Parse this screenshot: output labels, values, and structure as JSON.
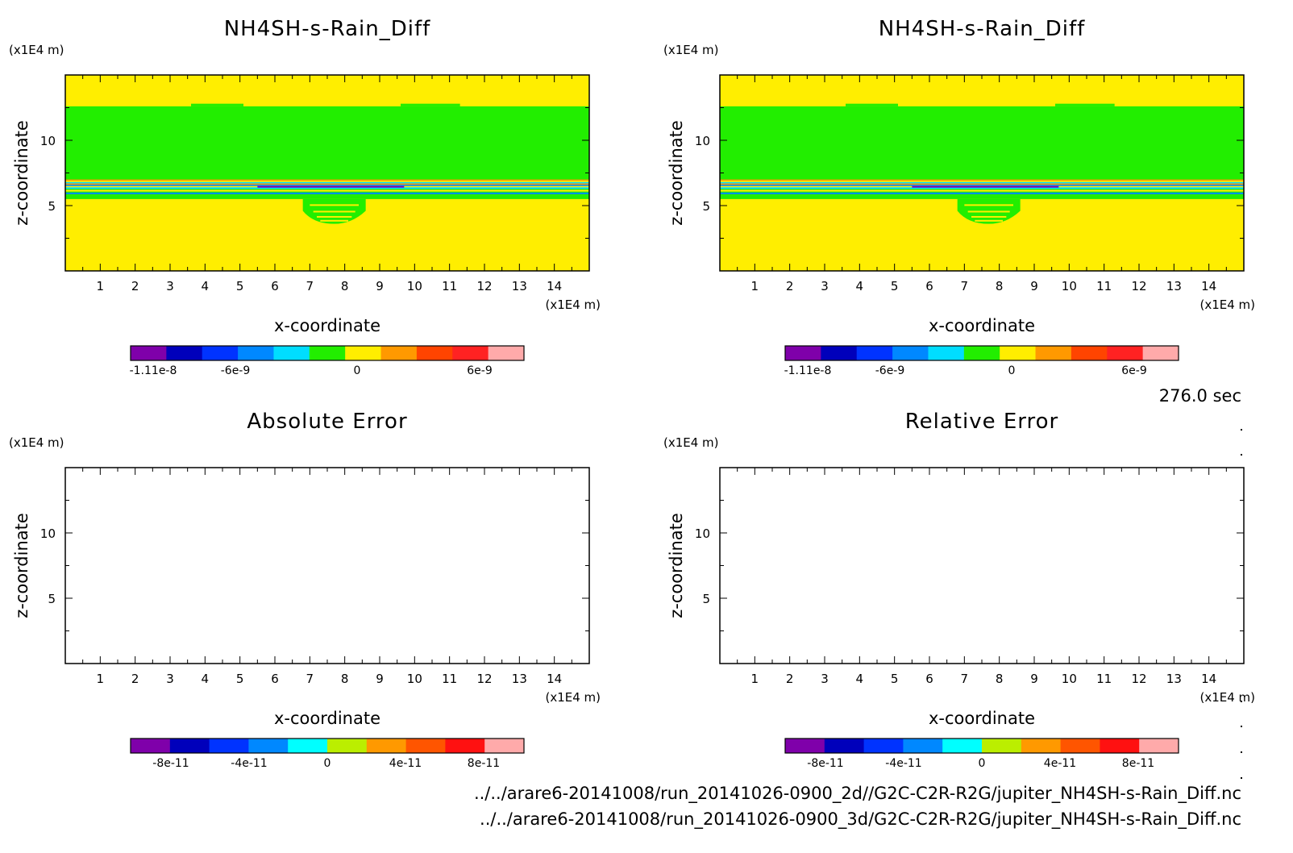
{
  "time_label": "276.0 sec",
  "files": [
    "../../arare6-20141008/run_20141026-0900_2d//G2C-C2R-R2G/jupiter_NH4SH-s-Rain_Diff.nc",
    "../../arare6-20141008/run_20141026-0900_3d/G2C-C2R-R2G/jupiter_NH4SH-s-Rain_Diff.nc"
  ],
  "chart_data": [
    {
      "type": "heatmap",
      "title": "NH4SH-s-Rain_Diff",
      "xlabel": "x-coordinate",
      "ylabel": "z-coordinate",
      "x_unit": "(x1E4 m)",
      "y_unit": "(x1E4 m)",
      "xlim": [
        0,
        15
      ],
      "ylim": [
        0,
        15
      ],
      "x_ticks": [
        "1",
        "2",
        "3",
        "4",
        "5",
        "6",
        "7",
        "8",
        "9",
        "10",
        "11",
        "12",
        "13",
        "14"
      ],
      "y_ticks": [
        "5",
        "10"
      ],
      "field": {
        "background_level": "yellow",
        "bands": [
          {
            "z_from": 5.5,
            "z_to": 12.6,
            "color": "#22ee00"
          },
          {
            "z_from": 6.4,
            "z_to": 7.0,
            "color": "multi"
          },
          {
            "z_from": 3.6,
            "z_to": 5.5,
            "x_from": 6.8,
            "x_to": 8.6,
            "color": "#22ee00"
          }
        ]
      },
      "colorbar": {
        "colors": [
          "#7f00aa",
          "#0000bb",
          "#0033ff",
          "#0088ff",
          "#00ddff",
          "#22ee00",
          "#ffee00",
          "#ff9900",
          "#ff4400",
          "#ff2222",
          "#ffaaaa"
        ],
        "labels": [
          "-1.11e-8",
          "-6e-9",
          "0",
          "6e-9"
        ]
      }
    },
    {
      "type": "heatmap",
      "title": "NH4SH-s-Rain_Diff",
      "xlabel": "x-coordinate",
      "ylabel": "z-coordinate",
      "x_unit": "(x1E4 m)",
      "y_unit": "(x1E4 m)",
      "xlim": [
        0,
        15
      ],
      "ylim": [
        0,
        15
      ],
      "x_ticks": [
        "1",
        "2",
        "3",
        "4",
        "5",
        "6",
        "7",
        "8",
        "9",
        "10",
        "11",
        "12",
        "13",
        "14"
      ],
      "y_ticks": [
        "5",
        "10"
      ],
      "field": {
        "background_level": "yellow",
        "bands": [
          {
            "z_from": 5.5,
            "z_to": 12.6,
            "color": "#22ee00"
          },
          {
            "z_from": 6.4,
            "z_to": 7.0,
            "color": "multi"
          },
          {
            "z_from": 3.6,
            "z_to": 5.5,
            "x_from": 6.8,
            "x_to": 8.6,
            "color": "#22ee00"
          }
        ]
      },
      "colorbar": {
        "colors": [
          "#7f00aa",
          "#0000bb",
          "#0033ff",
          "#0088ff",
          "#00ddff",
          "#22ee00",
          "#ffee00",
          "#ff9900",
          "#ff4400",
          "#ff2222",
          "#ffaaaa"
        ],
        "labels": [
          "-1.11e-8",
          "-6e-9",
          "0",
          "6e-9"
        ]
      }
    },
    {
      "type": "heatmap",
      "title": "Absolute Error",
      "xlabel": "x-coordinate",
      "ylabel": "z-coordinate",
      "x_unit": "(x1E4 m)",
      "y_unit": "(x1E4 m)",
      "xlim": [
        0,
        15
      ],
      "ylim": [
        0,
        15
      ],
      "x_ticks": [
        "1",
        "2",
        "3",
        "4",
        "5",
        "6",
        "7",
        "8",
        "9",
        "10",
        "11",
        "12",
        "13",
        "14"
      ],
      "y_ticks": [
        "5",
        "10"
      ],
      "field": null,
      "colorbar": {
        "colors": [
          "#7f00aa",
          "#0000bb",
          "#0033ff",
          "#0088ff",
          "#00ffff",
          "#bbee00",
          "#ff9900",
          "#ff5500",
          "#ff1111",
          "#ffaaaa"
        ],
        "labels": [
          "-8e-11",
          "-4e-11",
          "0",
          "4e-11",
          "8e-11"
        ]
      }
    },
    {
      "type": "heatmap",
      "title": "Relative Error",
      "xlabel": "x-coordinate",
      "ylabel": "z-coordinate",
      "x_unit": "(x1E4 m)",
      "y_unit": "(x1E4 m)",
      "xlim": [
        0,
        15
      ],
      "ylim": [
        0,
        15
      ],
      "x_ticks": [
        "1",
        "2",
        "3",
        "4",
        "5",
        "6",
        "7",
        "8",
        "9",
        "10",
        "11",
        "12",
        "13",
        "14"
      ],
      "y_ticks": [
        "5",
        "10"
      ],
      "field": null,
      "colorbar": {
        "colors": [
          "#7f00aa",
          "#0000bb",
          "#0033ff",
          "#0088ff",
          "#00ffff",
          "#bbee00",
          "#ff9900",
          "#ff5500",
          "#ff1111",
          "#ffaaaa"
        ],
        "labels": [
          "-8e-11",
          "-4e-11",
          "0",
          "4e-11",
          "8e-11"
        ]
      }
    }
  ]
}
